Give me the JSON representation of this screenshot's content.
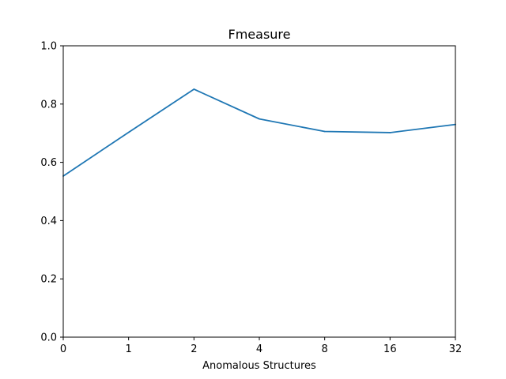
{
  "chart_data": {
    "type": "line",
    "title": "Fmeasure",
    "xlabel": "Anomalous Structures",
    "ylabel": "",
    "categories": [
      "0",
      "1",
      "2",
      "4",
      "8",
      "16",
      "32"
    ],
    "series": [
      {
        "values": [
          0.553,
          0.703,
          0.851,
          0.749,
          0.706,
          0.702,
          0.73
        ]
      }
    ],
    "ylim": [
      0.0,
      1.0
    ],
    "yticks": [
      "0.0",
      "0.2",
      "0.4",
      "0.6",
      "0.8",
      "1.0"
    ],
    "grid": false,
    "line_color": "#1f77b4"
  }
}
